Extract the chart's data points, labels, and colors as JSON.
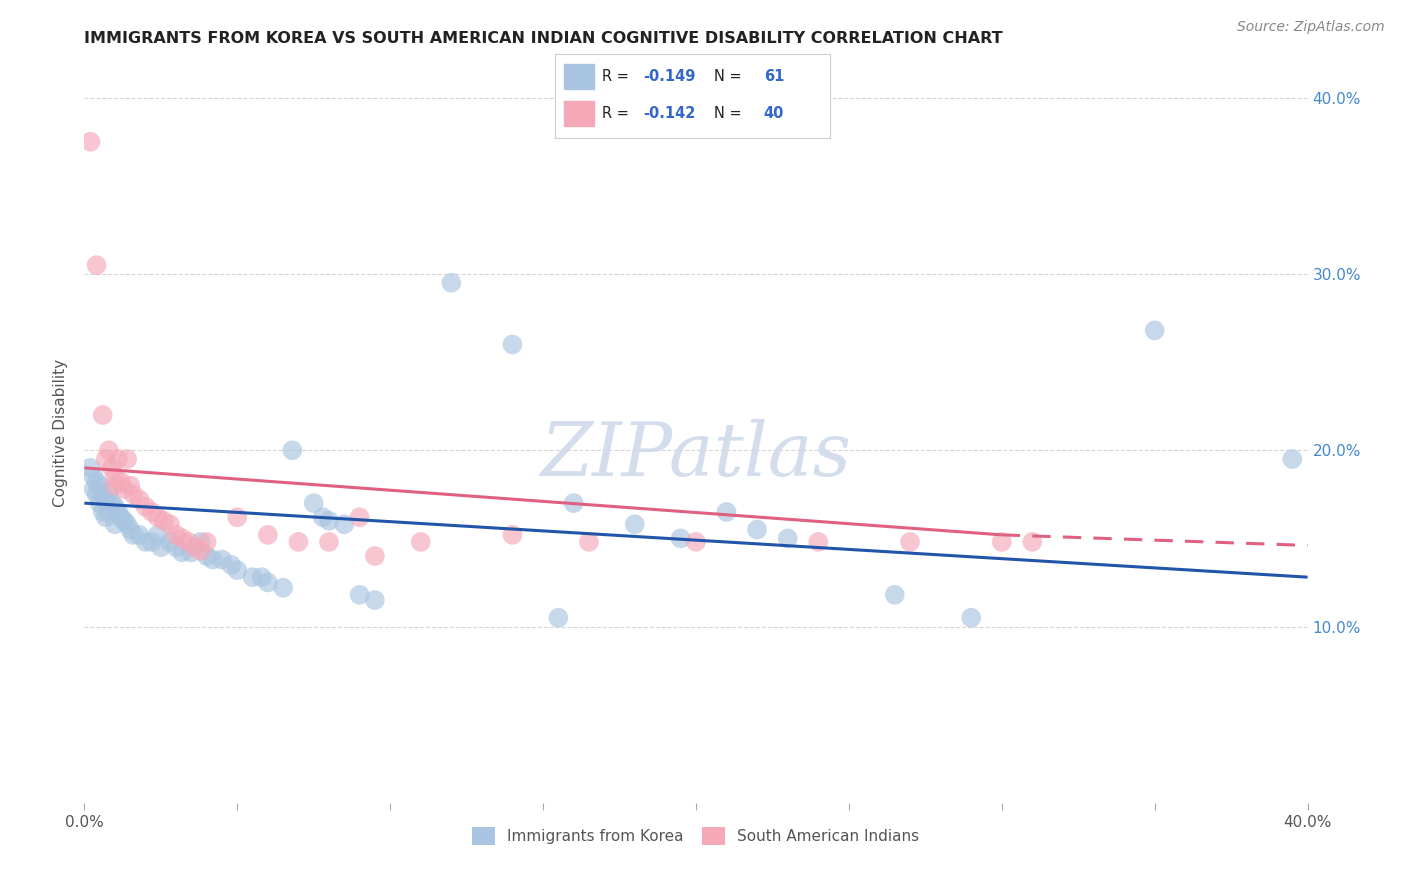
{
  "title": "IMMIGRANTS FROM KOREA VS SOUTH AMERICAN INDIAN COGNITIVE DISABILITY CORRELATION CHART",
  "source": "Source: ZipAtlas.com",
  "ylabel": "Cognitive Disability",
  "xlim": [
    0.0,
    0.4
  ],
  "ylim": [
    0.0,
    0.42
  ],
  "watermark": "ZIPatlas",
  "blue_color": "#a8c4e0",
  "pink_color": "#f4a8b8",
  "blue_line_color": "#2255aa",
  "pink_line_color": "#e06080",
  "blue_line": {
    "x0": 0.0,
    "y0": 0.17,
    "x1": 0.4,
    "y1": 0.128
  },
  "pink_line_solid": {
    "x0": 0.0,
    "y0": 0.19,
    "x1": 0.3,
    "y1": 0.152
  },
  "pink_line_dash": {
    "x0": 0.3,
    "y0": 0.152,
    "x1": 0.4,
    "y1": 0.146
  },
  "blue_scatter": [
    [
      0.002,
      0.19
    ],
    [
      0.003,
      0.185
    ],
    [
      0.003,
      0.178
    ],
    [
      0.004,
      0.182
    ],
    [
      0.004,
      0.175
    ],
    [
      0.005,
      0.18
    ],
    [
      0.005,
      0.17
    ],
    [
      0.006,
      0.175
    ],
    [
      0.006,
      0.165
    ],
    [
      0.007,
      0.172
    ],
    [
      0.007,
      0.162
    ],
    [
      0.008,
      0.176
    ],
    [
      0.008,
      0.165
    ],
    [
      0.009,
      0.17
    ],
    [
      0.01,
      0.158
    ],
    [
      0.01,
      0.168
    ],
    [
      0.011,
      0.165
    ],
    [
      0.012,
      0.162
    ],
    [
      0.013,
      0.16
    ],
    [
      0.014,
      0.158
    ],
    [
      0.015,
      0.155
    ],
    [
      0.016,
      0.152
    ],
    [
      0.018,
      0.152
    ],
    [
      0.02,
      0.148
    ],
    [
      0.022,
      0.148
    ],
    [
      0.024,
      0.152
    ],
    [
      0.025,
      0.145
    ],
    [
      0.028,
      0.148
    ],
    [
      0.03,
      0.145
    ],
    [
      0.032,
      0.142
    ],
    [
      0.035,
      0.142
    ],
    [
      0.038,
      0.148
    ],
    [
      0.04,
      0.14
    ],
    [
      0.042,
      0.138
    ],
    [
      0.045,
      0.138
    ],
    [
      0.048,
      0.135
    ],
    [
      0.05,
      0.132
    ],
    [
      0.055,
      0.128
    ],
    [
      0.058,
      0.128
    ],
    [
      0.06,
      0.125
    ],
    [
      0.065,
      0.122
    ],
    [
      0.068,
      0.2
    ],
    [
      0.075,
      0.17
    ],
    [
      0.078,
      0.162
    ],
    [
      0.08,
      0.16
    ],
    [
      0.085,
      0.158
    ],
    [
      0.09,
      0.118
    ],
    [
      0.095,
      0.115
    ],
    [
      0.12,
      0.295
    ],
    [
      0.14,
      0.26
    ],
    [
      0.155,
      0.105
    ],
    [
      0.16,
      0.17
    ],
    [
      0.18,
      0.158
    ],
    [
      0.195,
      0.15
    ],
    [
      0.21,
      0.165
    ],
    [
      0.22,
      0.155
    ],
    [
      0.23,
      0.15
    ],
    [
      0.265,
      0.118
    ],
    [
      0.29,
      0.105
    ],
    [
      0.35,
      0.268
    ],
    [
      0.395,
      0.195
    ]
  ],
  "pink_scatter": [
    [
      0.002,
      0.375
    ],
    [
      0.004,
      0.305
    ],
    [
      0.006,
      0.22
    ],
    [
      0.007,
      0.195
    ],
    [
      0.008,
      0.2
    ],
    [
      0.009,
      0.19
    ],
    [
      0.01,
      0.185
    ],
    [
      0.01,
      0.18
    ],
    [
      0.011,
      0.195
    ],
    [
      0.012,
      0.182
    ],
    [
      0.013,
      0.178
    ],
    [
      0.014,
      0.195
    ],
    [
      0.015,
      0.18
    ],
    [
      0.016,
      0.175
    ],
    [
      0.018,
      0.172
    ],
    [
      0.02,
      0.168
    ],
    [
      0.022,
      0.165
    ],
    [
      0.024,
      0.162
    ],
    [
      0.026,
      0.16
    ],
    [
      0.028,
      0.158
    ],
    [
      0.03,
      0.152
    ],
    [
      0.032,
      0.15
    ],
    [
      0.034,
      0.148
    ],
    [
      0.036,
      0.145
    ],
    [
      0.038,
      0.143
    ],
    [
      0.04,
      0.148
    ],
    [
      0.05,
      0.162
    ],
    [
      0.06,
      0.152
    ],
    [
      0.07,
      0.148
    ],
    [
      0.08,
      0.148
    ],
    [
      0.09,
      0.162
    ],
    [
      0.095,
      0.14
    ],
    [
      0.11,
      0.148
    ],
    [
      0.14,
      0.152
    ],
    [
      0.165,
      0.148
    ],
    [
      0.2,
      0.148
    ],
    [
      0.24,
      0.148
    ],
    [
      0.27,
      0.148
    ],
    [
      0.3,
      0.148
    ],
    [
      0.31,
      0.148
    ]
  ]
}
